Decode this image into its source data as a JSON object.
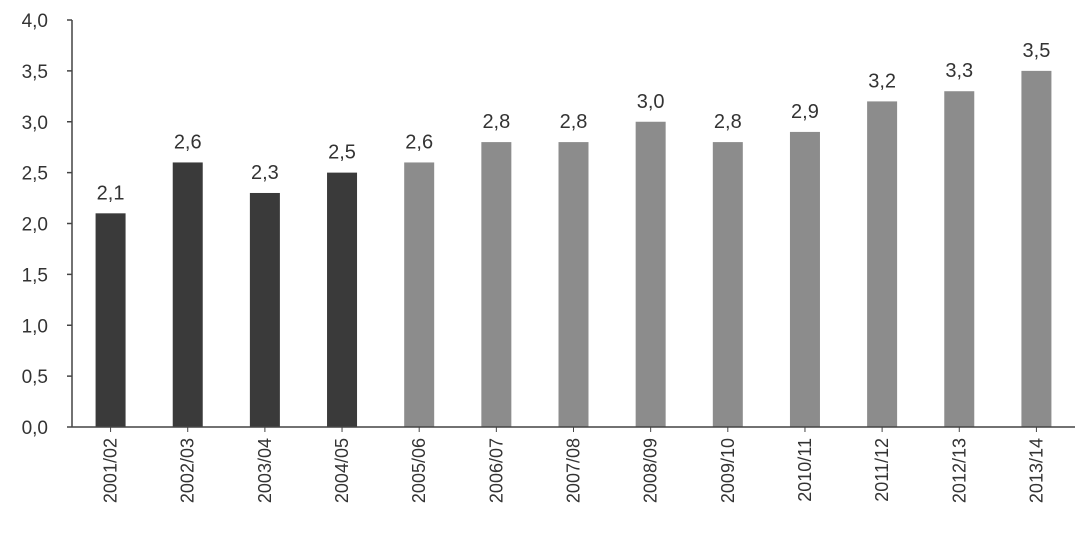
{
  "chart_data": {
    "type": "bar",
    "title": "",
    "xlabel": "",
    "ylabel": "",
    "ylim": [
      0,
      4
    ],
    "yticks": [
      "0,0",
      "0,5",
      "1,0",
      "1,5",
      "2,0",
      "2,5",
      "3,0",
      "3,5",
      "4,0"
    ],
    "categories": [
      "2001/02",
      "2002/03",
      "2003/04",
      "2004/05",
      "2005/06",
      "2006/07",
      "2007/08",
      "2008/09",
      "2009/10",
      "2010/11",
      "2011/12",
      "2012/13",
      "2013/14"
    ],
    "values": [
      2.1,
      2.6,
      2.3,
      2.5,
      2.6,
      2.8,
      2.8,
      3.0,
      2.8,
      2.9,
      3.2,
      3.3,
      3.5
    ],
    "value_labels": [
      "2,1",
      "2,6",
      "2,3",
      "2,5",
      "2,6",
      "2,8",
      "2,8",
      "3,0",
      "2,8",
      "2,9",
      "3,2",
      "3,3",
      "3,5"
    ],
    "grid": false,
    "colors": {
      "dark": "#3a3a3a",
      "light": "#8c8c8c",
      "axis": "#444444"
    },
    "dark_count": 4
  }
}
